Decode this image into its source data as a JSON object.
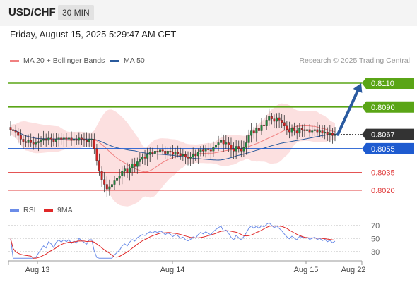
{
  "header": {
    "symbol": "USD/CHF",
    "timeframe": "30 MIN",
    "datetime": "Friday, August 15, 2025 5:29:47 AM CET"
  },
  "legend": {
    "ma20": "MA 20 + Bollinger Bands",
    "ma50": "MA 50",
    "copyright": "Research © 2025 Trading Central"
  },
  "rsi_legend": {
    "rsi": "RSI",
    "ma": "9MA"
  },
  "colors": {
    "support": "#1e5bd0",
    "resistance_green": "#5aa516",
    "red_level": "#e03c3c",
    "ma20": "#f08080",
    "ma50": "#2a5a9c",
    "candle_up": "#1e8a3c",
    "candle_down": "#d02222",
    "rsi": "#6b8ce8",
    "rsi_ma": "#e02828"
  },
  "chart_data": [
    {
      "type": "candlestick",
      "symbol": "USD/CHF",
      "timeframe": "30 MIN",
      "current_price": 0.8067,
      "levels": [
        {
          "value": 0.811,
          "label": "0.8110",
          "kind": "target",
          "color": "#5aa516"
        },
        {
          "value": 0.809,
          "label": "0.8090",
          "kind": "resistance",
          "color": "#5aa516"
        },
        {
          "value": 0.8067,
          "label": "0.8067",
          "kind": "last-price",
          "color": "#333333"
        },
        {
          "value": 0.8055,
          "label": "0.8055",
          "kind": "pivot",
          "color": "#1e5bd0"
        },
        {
          "value": 0.8035,
          "label": "0.8035",
          "kind": "support",
          "color": "#e03c3c"
        },
        {
          "value": 0.802,
          "label": "0.8020",
          "kind": "support",
          "color": "#e03c3c"
        }
      ],
      "x_ticks": [
        "Aug 13",
        "Aug 14",
        "Aug 15",
        "Aug 22"
      ],
      "ylim": [
        0.801,
        0.8115
      ],
      "closes": [
        0.8071,
        0.807,
        0.8069,
        0.8066,
        0.8063,
        0.8061,
        0.806,
        0.8062,
        0.806,
        0.8059,
        0.806,
        0.8061,
        0.8062,
        0.8063,
        0.8062,
        0.8064,
        0.8063,
        0.8061,
        0.8063,
        0.8064,
        0.8063,
        0.8064,
        0.8063,
        0.8064,
        0.8062,
        0.8063,
        0.8062,
        0.8064,
        0.8063,
        0.8062,
        0.8061,
        0.8063,
        0.8063,
        0.8055,
        0.8045,
        0.8036,
        0.8029,
        0.8025,
        0.8021,
        0.8023,
        0.8025,
        0.8028,
        0.803,
        0.8032,
        0.8036,
        0.8038,
        0.8035,
        0.8039,
        0.8042,
        0.804,
        0.8044,
        0.8046,
        0.8048,
        0.8047,
        0.805,
        0.8052,
        0.8051,
        0.8053,
        0.8052,
        0.8054,
        0.8053,
        0.8051,
        0.8053,
        0.8052,
        0.805,
        0.8052,
        0.8051,
        0.8049,
        0.805,
        0.8048,
        0.8047,
        0.8048,
        0.805,
        0.8049,
        0.8052,
        0.8054,
        0.8053,
        0.8055,
        0.8054,
        0.8053,
        0.8056,
        0.8058,
        0.806,
        0.8062,
        0.8059,
        0.806,
        0.8058,
        0.8055,
        0.8053,
        0.8057,
        0.8055,
        0.8053,
        0.8056,
        0.806,
        0.8066,
        0.807,
        0.8068,
        0.8072,
        0.807,
        0.8075,
        0.8074,
        0.8079,
        0.8082,
        0.808,
        0.8078,
        0.8081,
        0.8079,
        0.8077,
        0.8074,
        0.8071,
        0.8069,
        0.8072,
        0.807,
        0.8068,
        0.8072,
        0.8071,
        0.807,
        0.8071,
        0.8069,
        0.807,
        0.8071,
        0.8069,
        0.807,
        0.8068,
        0.8069,
        0.8067,
        0.8068,
        0.8066,
        0.8067
      ],
      "projection": {
        "from": 0.8067,
        "to": 0.811
      }
    },
    {
      "type": "line",
      "name": "RSI",
      "series_names": [
        "RSI",
        "9MA"
      ],
      "y_ticks": [
        70,
        50,
        30
      ],
      "ylim": [
        20,
        80
      ],
      "guide_lines": [
        70,
        30
      ]
    }
  ]
}
